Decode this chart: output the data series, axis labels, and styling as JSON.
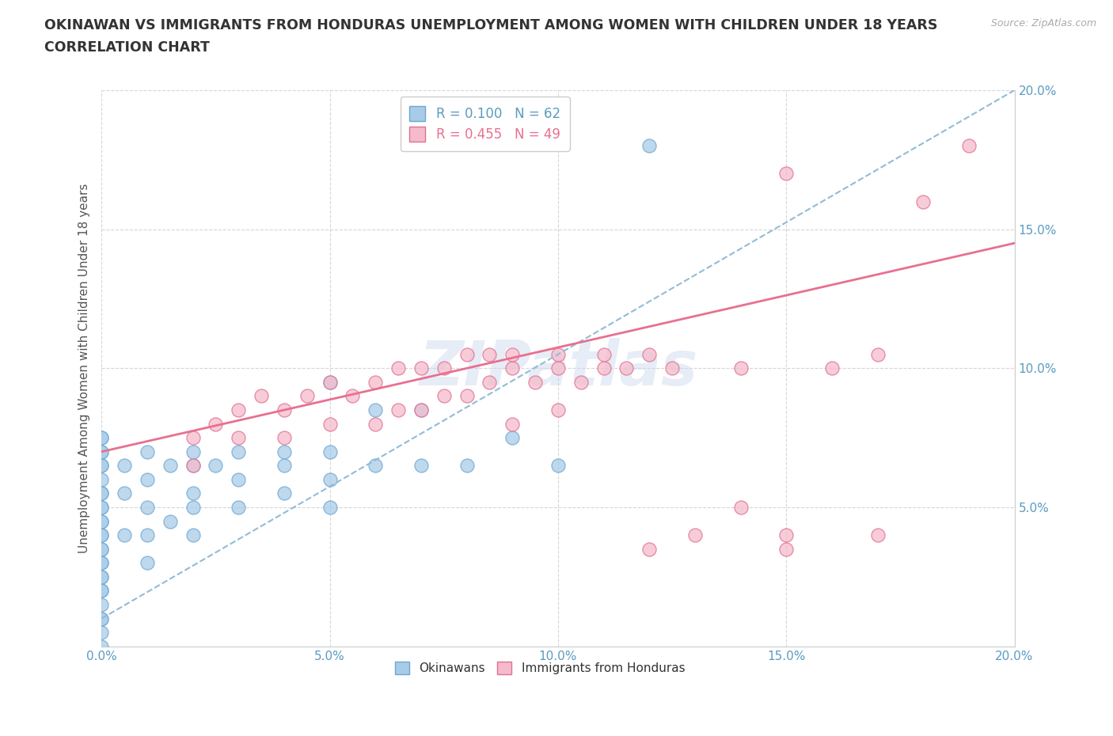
{
  "title1": "OKINAWAN VS IMMIGRANTS FROM HONDURAS UNEMPLOYMENT AMONG WOMEN WITH CHILDREN UNDER 18 YEARS",
  "title2": "CORRELATION CHART",
  "source_text": "Source: ZipAtlas.com",
  "ylabel": "Unemployment Among Women with Children Under 18 years",
  "xlim": [
    0.0,
    0.2
  ],
  "ylim": [
    0.0,
    0.2
  ],
  "xticks_major": [
    0.0,
    0.05,
    0.1,
    0.15,
    0.2
  ],
  "yticks_major": [
    0.0,
    0.05,
    0.1,
    0.15,
    0.2
  ],
  "xticklabels": [
    "0.0%",
    "",
    "",
    "",
    "",
    "",
    "",
    "",
    "",
    "",
    "5.0%",
    "",
    "",
    "",
    "",
    "",
    "",
    "",
    "",
    "",
    "10.0%",
    "",
    "",
    "",
    "",
    "",
    "",
    "",
    "",
    "",
    "15.0%",
    "",
    "",
    "",
    "",
    "",
    "",
    "",
    "",
    "",
    "20.0%"
  ],
  "yticklabels_right": [
    "",
    "5.0%",
    "10.0%",
    "15.0%",
    "20.0%"
  ],
  "series1_color": "#A8CCE8",
  "series1_edge": "#6FA8D0",
  "series2_color": "#F5BBCC",
  "series2_edge": "#E07090",
  "trend1_color": "#90BCD8",
  "trend2_color": "#E87090",
  "R1": 0.1,
  "N1": 62,
  "R2": 0.455,
  "N2": 49,
  "legend_label1": "Okinawans",
  "legend_label2": "Immigrants from Honduras",
  "watermark": "ZIPatlas",
  "tick_color": "#5A9BC0",
  "okinawan_x": [
    0.0,
    0.0,
    0.0,
    0.0,
    0.0,
    0.0,
    0.0,
    0.0,
    0.0,
    0.0,
    0.0,
    0.0,
    0.0,
    0.0,
    0.0,
    0.0,
    0.0,
    0.0,
    0.0,
    0.0,
    0.0,
    0.0,
    0.0,
    0.0,
    0.0,
    0.0,
    0.0,
    0.0,
    0.005,
    0.005,
    0.005,
    0.01,
    0.01,
    0.01,
    0.01,
    0.01,
    0.015,
    0.015,
    0.02,
    0.02,
    0.02,
    0.02,
    0.02,
    0.025,
    0.03,
    0.03,
    0.03,
    0.04,
    0.04,
    0.04,
    0.05,
    0.05,
    0.05,
    0.05,
    0.06,
    0.06,
    0.07,
    0.07,
    0.08,
    0.09,
    0.1,
    0.12
  ],
  "okinawan_y": [
    0.0,
    0.005,
    0.01,
    0.01,
    0.015,
    0.02,
    0.02,
    0.025,
    0.025,
    0.03,
    0.03,
    0.035,
    0.035,
    0.04,
    0.04,
    0.045,
    0.045,
    0.05,
    0.05,
    0.055,
    0.055,
    0.06,
    0.065,
    0.065,
    0.07,
    0.07,
    0.075,
    0.075,
    0.04,
    0.055,
    0.065,
    0.03,
    0.04,
    0.05,
    0.06,
    0.07,
    0.045,
    0.065,
    0.04,
    0.05,
    0.055,
    0.065,
    0.07,
    0.065,
    0.05,
    0.06,
    0.07,
    0.055,
    0.065,
    0.07,
    0.05,
    0.06,
    0.07,
    0.095,
    0.065,
    0.085,
    0.065,
    0.085,
    0.065,
    0.075,
    0.065,
    0.18
  ],
  "honduras_x": [
    0.02,
    0.02,
    0.025,
    0.03,
    0.03,
    0.035,
    0.04,
    0.04,
    0.045,
    0.05,
    0.05,
    0.055,
    0.06,
    0.06,
    0.065,
    0.065,
    0.07,
    0.07,
    0.075,
    0.075,
    0.08,
    0.08,
    0.085,
    0.085,
    0.09,
    0.09,
    0.09,
    0.095,
    0.1,
    0.1,
    0.1,
    0.105,
    0.11,
    0.11,
    0.115,
    0.12,
    0.12,
    0.125,
    0.13,
    0.14,
    0.14,
    0.15,
    0.15,
    0.15,
    0.16,
    0.17,
    0.17,
    0.18,
    0.19
  ],
  "honduras_y": [
    0.065,
    0.075,
    0.08,
    0.075,
    0.085,
    0.09,
    0.075,
    0.085,
    0.09,
    0.08,
    0.095,
    0.09,
    0.08,
    0.095,
    0.085,
    0.1,
    0.085,
    0.1,
    0.09,
    0.1,
    0.09,
    0.105,
    0.095,
    0.105,
    0.08,
    0.1,
    0.105,
    0.095,
    0.085,
    0.1,
    0.105,
    0.095,
    0.1,
    0.105,
    0.1,
    0.035,
    0.105,
    0.1,
    0.04,
    0.05,
    0.1,
    0.035,
    0.04,
    0.17,
    0.1,
    0.04,
    0.105,
    0.16,
    0.18
  ],
  "trend1_x_start": 0.0,
  "trend1_x_end": 0.2,
  "trend1_y_start": 0.01,
  "trend1_y_end": 0.2,
  "trend2_x_start": 0.0,
  "trend2_x_end": 0.2,
  "trend2_y_start": 0.07,
  "trend2_y_end": 0.145
}
